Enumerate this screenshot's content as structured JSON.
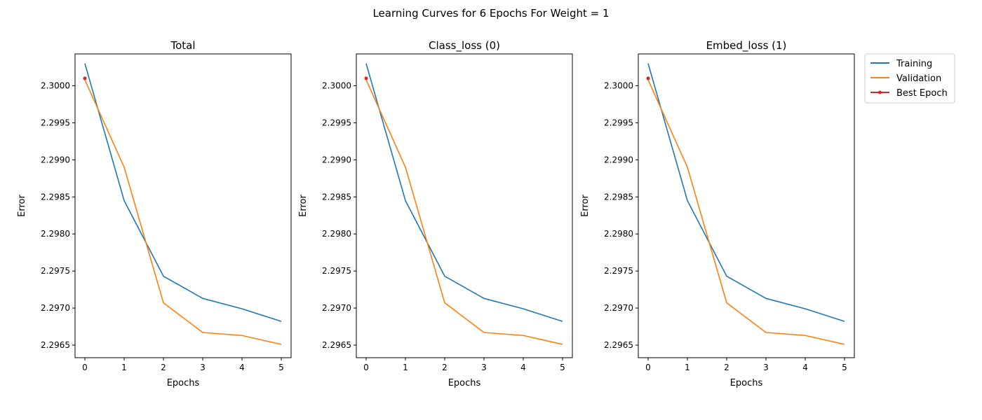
{
  "figure": {
    "suptitle": "Learning Curves for 6 Epochs For Weight = 1"
  },
  "legend": {
    "placement": "outside-right-top",
    "entries": [
      {
        "label": "Training",
        "color": "#1f77b4",
        "marker": "none"
      },
      {
        "label": "Validation",
        "color": "#ff7f0e",
        "marker": "none"
      },
      {
        "label": "Best Epoch",
        "color": "#d62728",
        "marker": "dot"
      }
    ]
  },
  "chart_data": [
    {
      "type": "line",
      "title": "Total",
      "xlabel": "Epochs",
      "ylabel": "Error",
      "x": [
        0,
        1,
        2,
        3,
        4,
        5
      ],
      "xticks": [
        "0",
        "1",
        "2",
        "3",
        "4",
        "5"
      ],
      "yticks": [
        "2.2965",
        "2.2970",
        "2.2975",
        "2.2980",
        "2.2985",
        "2.2990",
        "2.2995",
        "2.3000"
      ],
      "ytick_values": [
        2.2965,
        2.297,
        2.2975,
        2.298,
        2.2985,
        2.299,
        2.2995,
        2.3
      ],
      "xlim": [
        -0.25,
        5.25
      ],
      "ylim": [
        2.29633,
        2.30043
      ],
      "grid": false,
      "series": [
        {
          "name": "Training",
          "color": "#1f77b4",
          "values": [
            2.3003,
            2.29845,
            2.29743,
            2.29713,
            2.29699,
            2.29682
          ]
        },
        {
          "name": "Validation",
          "color": "#ff7f0e",
          "values": [
            2.30008,
            2.2989,
            2.29707,
            2.29667,
            2.29663,
            2.29651
          ]
        }
      ],
      "best_epoch": {
        "name": "Best Epoch",
        "color": "#d62728",
        "x": 0,
        "y": 2.3001
      }
    },
    {
      "type": "line",
      "title": "Class_loss (0)",
      "xlabel": "Epochs",
      "ylabel": "Error",
      "x": [
        0,
        1,
        2,
        3,
        4,
        5
      ],
      "xticks": [
        "0",
        "1",
        "2",
        "3",
        "4",
        "5"
      ],
      "yticks": [
        "2.2965",
        "2.2970",
        "2.2975",
        "2.2980",
        "2.2985",
        "2.2990",
        "2.2995",
        "2.3000"
      ],
      "ytick_values": [
        2.2965,
        2.297,
        2.2975,
        2.298,
        2.2985,
        2.299,
        2.2995,
        2.3
      ],
      "xlim": [
        -0.25,
        5.25
      ],
      "ylim": [
        2.29633,
        2.30043
      ],
      "grid": false,
      "series": [
        {
          "name": "Training",
          "color": "#1f77b4",
          "values": [
            2.3003,
            2.29845,
            2.29743,
            2.29713,
            2.29699,
            2.29682
          ]
        },
        {
          "name": "Validation",
          "color": "#ff7f0e",
          "values": [
            2.30008,
            2.2989,
            2.29707,
            2.29667,
            2.29663,
            2.29651
          ]
        }
      ],
      "best_epoch": {
        "name": "Best Epoch",
        "color": "#d62728",
        "x": 0,
        "y": 2.3001
      }
    },
    {
      "type": "line",
      "title": "Embed_loss (1)",
      "xlabel": "Epochs",
      "ylabel": "Error",
      "x": [
        0,
        1,
        2,
        3,
        4,
        5
      ],
      "xticks": [
        "0",
        "1",
        "2",
        "3",
        "4",
        "5"
      ],
      "yticks": [
        "2.2965",
        "2.2970",
        "2.2975",
        "2.2980",
        "2.2985",
        "2.2990",
        "2.2995",
        "2.3000"
      ],
      "ytick_values": [
        2.2965,
        2.297,
        2.2975,
        2.298,
        2.2985,
        2.299,
        2.2995,
        2.3
      ],
      "xlim": [
        -0.25,
        5.25
      ],
      "ylim": [
        2.29633,
        2.30043
      ],
      "grid": false,
      "series": [
        {
          "name": "Training",
          "color": "#1f77b4",
          "values": [
            2.3003,
            2.29845,
            2.29743,
            2.29713,
            2.29699,
            2.29682
          ]
        },
        {
          "name": "Validation",
          "color": "#ff7f0e",
          "values": [
            2.30008,
            2.2989,
            2.29707,
            2.29667,
            2.29663,
            2.29651
          ]
        }
      ],
      "best_epoch": {
        "name": "Best Epoch",
        "color": "#d62728",
        "x": 0,
        "y": 2.3001
      }
    }
  ]
}
